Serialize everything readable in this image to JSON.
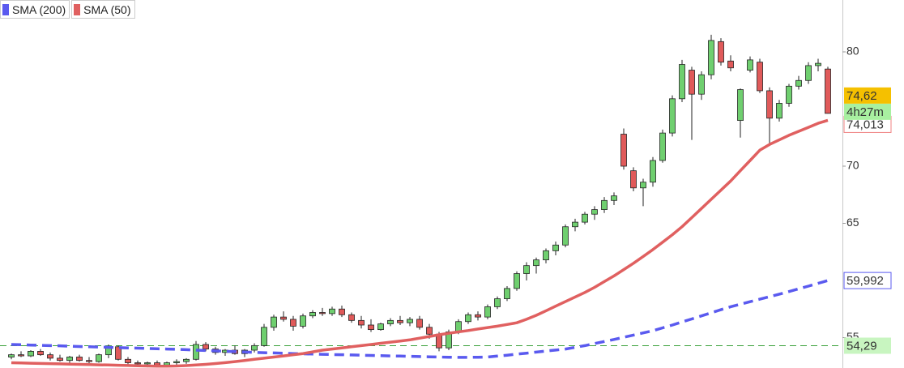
{
  "chart_data": {
    "type": "candlestick",
    "ylim": [
      52.34,
      84.54
    ],
    "yticks": [
      55,
      65,
      70,
      80
    ],
    "up_color": "#6fcf6f",
    "down_color": "#e05a5a",
    "open": [
      53.3,
      53.5,
      53.4,
      53.8,
      53.5,
      53.2,
      53.0,
      53.3,
      53.0,
      52.9,
      53.5,
      54.2,
      53.1,
      52.8,
      52.7,
      52.8,
      52.6,
      52.8,
      52.9,
      53.1,
      54.4,
      54.0,
      53.7,
      53.9,
      53.6,
      53.9,
      54.3,
      55.9,
      56.8,
      56.6,
      56.0,
      56.9,
      57.2,
      57.1,
      57.5,
      57.0,
      56.5,
      56.1,
      55.7,
      56.2,
      56.5,
      56.3,
      56.6,
      55.9,
      55.3,
      54.1,
      55.5,
      56.4,
      57.0,
      56.8,
      57.7,
      58.4,
      59.3,
      60.6,
      61.3,
      61.8,
      62.6,
      63.1,
      64.7,
      65.1,
      65.8,
      66.2,
      67.0,
      72.8,
      69.6,
      68.1,
      68.6,
      70.5,
      72.9,
      75.9,
      78.4,
      76.3,
      78.0,
      80.9,
      79.2,
      74.0,
      78.4,
      79.1,
      76.6,
      74.2,
      75.5,
      77.0,
      77.5,
      78.8,
      78.5
    ],
    "high": [
      53.6,
      53.8,
      53.9,
      54.0,
      53.7,
      53.5,
      53.4,
      53.5,
      53.3,
      53.6,
      54.4,
      54.3,
      53.3,
      53.0,
      52.9,
      53.0,
      52.9,
      53.1,
      53.2,
      54.7,
      54.6,
      54.2,
      54.0,
      54.3,
      54.0,
      54.5,
      56.2,
      57.0,
      57.3,
      56.9,
      57.1,
      57.4,
      57.6,
      57.7,
      57.8,
      57.2,
      56.9,
      56.6,
      56.3,
      56.7,
      56.9,
      56.8,
      56.9,
      56.2,
      55.5,
      55.7,
      56.6,
      57.2,
      57.3,
      57.9,
      58.6,
      59.5,
      60.8,
      61.6,
      62.0,
      62.8,
      63.4,
      64.9,
      65.4,
      66.0,
      66.5,
      67.3,
      67.7,
      73.3,
      69.9,
      68.9,
      70.8,
      73.2,
      76.2,
      79.3,
      78.7,
      78.3,
      81.5,
      81.2,
      79.7,
      76.8,
      79.6,
      79.4,
      76.9,
      75.8,
      77.2,
      77.9,
      79.1,
      79.4,
      78.7
    ],
    "low": [
      53.1,
      53.3,
      53.3,
      53.4,
      53.0,
      52.9,
      52.8,
      52.9,
      52.7,
      52.8,
      53.2,
      53.0,
      52.6,
      52.5,
      52.4,
      52.5,
      52.4,
      52.6,
      52.7,
      53.0,
      53.8,
      53.5,
      53.4,
      53.5,
      53.3,
      53.7,
      54.2,
      55.6,
      56.4,
      55.6,
      55.8,
      56.7,
      56.9,
      56.9,
      56.8,
      56.3,
      55.8,
      55.5,
      55.6,
      56.0,
      56.1,
      56.0,
      55.7,
      54.9,
      53.8,
      53.9,
      55.3,
      56.2,
      56.5,
      56.6,
      57.5,
      58.2,
      59.1,
      60.0,
      60.6,
      61.5,
      62.2,
      62.9,
      64.3,
      64.9,
      65.3,
      65.9,
      66.6,
      69.7,
      67.8,
      66.5,
      68.2,
      70.3,
      72.6,
      75.6,
      72.3,
      75.8,
      77.6,
      78.8,
      78.3,
      72.5,
      78.2,
      76.4,
      71.8,
      73.9,
      75.2,
      76.7,
      77.2,
      78.3,
      74.6
    ],
    "close": [
      53.5,
      53.4,
      53.8,
      53.5,
      53.2,
      53.0,
      53.3,
      53.0,
      52.9,
      53.5,
      54.2,
      53.1,
      52.8,
      52.7,
      52.8,
      52.6,
      52.8,
      52.9,
      53.1,
      54.4,
      54.0,
      53.7,
      53.9,
      53.6,
      53.9,
      54.3,
      55.9,
      56.8,
      56.6,
      56.0,
      56.9,
      57.2,
      57.1,
      57.5,
      57.0,
      56.5,
      56.1,
      55.7,
      56.2,
      56.5,
      56.3,
      56.6,
      55.9,
      55.3,
      54.1,
      55.5,
      56.4,
      57.0,
      56.8,
      57.7,
      58.4,
      59.3,
      60.6,
      61.3,
      61.8,
      62.6,
      63.1,
      64.7,
      65.1,
      65.8,
      66.2,
      67.0,
      67.4,
      70.0,
      68.1,
      68.6,
      70.5,
      72.9,
      75.9,
      78.9,
      76.3,
      78.0,
      81.0,
      79.1,
      78.6,
      76.7,
      79.3,
      76.6,
      74.2,
      75.5,
      77.0,
      77.5,
      78.8,
      79.0,
      74.62
    ],
    "last_price_label": "74,62",
    "countdown": "4h27m",
    "series": [
      {
        "name": "SMA (200)",
        "color": "#5a5aef",
        "dashed": true,
        "last_value_label": "59,992",
        "values": [
          54.4,
          54.38,
          54.35,
          54.32,
          54.3,
          54.28,
          54.25,
          54.22,
          54.2,
          54.18,
          54.15,
          54.12,
          54.1,
          54.08,
          54.05,
          54.02,
          54.0,
          53.97,
          53.94,
          53.9,
          53.87,
          53.84,
          53.8,
          53.77,
          53.74,
          53.7,
          53.68,
          53.66,
          53.63,
          53.6,
          53.58,
          53.56,
          53.54,
          53.52,
          53.5,
          53.48,
          53.46,
          53.44,
          53.42,
          53.4,
          53.38,
          53.36,
          53.34,
          53.32,
          53.3,
          53.28,
          53.27,
          53.27,
          53.28,
          53.3,
          53.38,
          53.46,
          53.55,
          53.64,
          53.73,
          53.82,
          53.91,
          54.0,
          54.15,
          54.3,
          54.48,
          54.66,
          54.84,
          55.03,
          55.22,
          55.41,
          55.6,
          55.85,
          56.1,
          56.37,
          56.63,
          56.9,
          57.17,
          57.44,
          57.7,
          57.92,
          58.14,
          58.36,
          58.58,
          58.8,
          59.03,
          59.27,
          59.5,
          59.75,
          59.992
        ]
      },
      {
        "name": "SMA (50)",
        "color": "#e06060",
        "dashed": false,
        "last_value_label": "74,013",
        "values": [
          52.8,
          52.78,
          52.76,
          52.74,
          52.72,
          52.7,
          52.68,
          52.66,
          52.64,
          52.62,
          52.6,
          52.58,
          52.56,
          52.54,
          52.52,
          52.5,
          52.5,
          52.52,
          52.55,
          52.6,
          52.66,
          52.73,
          52.81,
          52.9,
          53.0,
          53.1,
          53.2,
          53.3,
          53.4,
          53.5,
          53.6,
          53.75,
          53.9,
          54.0,
          54.1,
          54.2,
          54.3,
          54.4,
          54.5,
          54.6,
          54.7,
          54.8,
          54.95,
          55.1,
          55.25,
          55.38,
          55.5,
          55.62,
          55.75,
          55.88,
          56.0,
          56.15,
          56.3,
          56.6,
          56.95,
          57.35,
          57.75,
          58.15,
          58.55,
          58.95,
          59.4,
          59.9,
          60.4,
          60.95,
          61.5,
          62.1,
          62.7,
          63.35,
          64.0,
          64.7,
          65.5,
          66.3,
          67.1,
          67.9,
          68.7,
          69.6,
          70.5,
          71.4,
          71.9,
          72.3,
          72.7,
          73.05,
          73.4,
          73.75,
          74.013
        ]
      }
    ],
    "reference_line": {
      "value": 54.29,
      "label": "54,29",
      "color": "#3aa03a"
    }
  }
}
